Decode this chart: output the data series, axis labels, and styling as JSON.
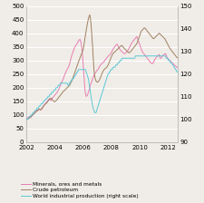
{
  "ylim_left": [
    0,
    500
  ],
  "ylim_right": [
    90,
    150
  ],
  "yticks_left": [
    0,
    50,
    100,
    150,
    200,
    250,
    300,
    350,
    400,
    450,
    500
  ],
  "yticks_right": [
    90,
    100,
    110,
    120,
    130,
    140,
    150
  ],
  "xlim": [
    2002.0,
    2012.67
  ],
  "xticks": [
    2002,
    2004,
    2006,
    2008,
    2010,
    2012
  ],
  "color_minerals": "#e87db0",
  "color_petroleum": "#a08060",
  "color_industrial": "#5bc8d8",
  "legend_labels": [
    "Minerals, ores and metals",
    "Crude petroleum",
    "World industrial production (right scale)"
  ],
  "background_color": "#f0ede8",
  "grid_color": "#ffffff",
  "minerals": [
    88,
    90,
    88,
    92,
    95,
    93,
    90,
    95,
    98,
    100,
    105,
    108,
    110,
    112,
    115,
    118,
    115,
    118,
    122,
    120,
    118,
    120,
    122,
    125,
    130,
    135,
    140,
    142,
    145,
    148,
    150,
    155,
    158,
    160,
    155,
    152,
    158,
    162,
    165,
    168,
    172,
    175,
    178,
    182,
    185,
    190,
    195,
    200,
    208,
    215,
    220,
    225,
    230,
    238,
    245,
    252,
    258,
    262,
    268,
    272,
    278,
    285,
    295,
    305,
    315,
    322,
    330,
    338,
    345,
    350,
    355,
    358,
    362,
    368,
    372,
    375,
    378,
    372,
    360,
    340,
    310,
    272,
    235,
    200,
    178,
    168,
    170,
    175,
    182,
    190,
    200,
    210,
    218,
    225,
    232,
    238,
    245,
    250,
    255,
    258,
    262,
    265,
    268,
    272,
    278,
    282,
    285,
    288,
    290,
    292,
    295,
    298,
    302,
    305,
    308,
    312,
    315,
    318,
    320,
    322,
    325,
    330,
    335,
    340,
    345,
    348,
    352,
    355,
    358,
    360,
    355,
    350,
    345,
    342,
    338,
    335,
    332,
    330,
    328,
    325,
    325,
    328,
    330,
    332,
    335,
    340,
    345,
    350,
    355,
    360,
    365,
    368,
    372,
    375,
    378,
    382,
    385,
    388,
    382,
    375,
    368,
    360,
    352,
    345,
    338,
    332,
    328,
    325,
    322,
    318,
    315,
    312,
    308,
    305,
    302,
    298,
    295,
    292,
    290,
    288,
    290,
    295,
    300,
    305,
    308,
    312,
    315,
    318,
    320,
    322,
    310,
    308,
    310,
    315,
    318,
    320,
    322,
    325,
    325,
    318,
    312,
    308,
    305,
    302,
    300,
    298,
    295,
    292,
    290,
    288,
    285,
    282,
    280,
    278,
    276,
    274
  ],
  "petroleum": [
    82,
    84,
    85,
    87,
    88,
    90,
    92,
    95,
    98,
    100,
    102,
    105,
    108,
    110,
    112,
    115,
    118,
    120,
    122,
    120,
    118,
    122,
    125,
    128,
    132,
    135,
    138,
    140,
    142,
    145,
    148,
    152,
    155,
    158,
    160,
    162,
    158,
    155,
    152,
    150,
    148,
    150,
    152,
    155,
    158,
    162,
    165,
    168,
    172,
    175,
    178,
    182,
    185,
    188,
    190,
    192,
    195,
    198,
    200,
    202,
    205,
    208,
    212,
    218,
    222,
    228,
    235,
    242,
    250,
    258,
    265,
    272,
    280,
    288,
    295,
    302,
    308,
    315,
    322,
    328,
    335,
    345,
    360,
    378,
    395,
    410,
    425,
    440,
    452,
    462,
    468,
    455,
    430,
    395,
    355,
    310,
    268,
    245,
    232,
    225,
    222,
    220,
    222,
    225,
    230,
    235,
    242,
    248,
    255,
    260,
    265,
    268,
    270,
    272,
    275,
    278,
    282,
    288,
    295,
    302,
    308,
    315,
    320,
    325,
    328,
    330,
    332,
    335,
    338,
    340,
    342,
    345,
    348,
    350,
    352,
    355,
    355,
    352,
    348,
    345,
    342,
    340,
    338,
    335,
    332,
    330,
    328,
    330,
    332,
    335,
    338,
    342,
    345,
    348,
    352,
    355,
    358,
    362,
    368,
    375,
    382,
    390,
    398,
    405,
    410,
    412,
    415,
    418,
    420,
    418,
    415,
    412,
    408,
    405,
    402,
    398,
    395,
    392,
    388,
    385,
    382,
    380,
    382,
    385,
    388,
    390,
    392,
    395,
    398,
    400,
    398,
    395,
    392,
    390,
    388,
    385,
    382,
    380,
    375,
    370,
    365,
    360,
    355,
    350,
    345,
    342,
    338,
    335,
    332,
    328,
    325,
    322,
    318,
    315,
    312,
    310
  ],
  "industrial": [
    100,
    100,
    100,
    101,
    101,
    101,
    102,
    102,
    102,
    103,
    103,
    103,
    104,
    104,
    104,
    105,
    105,
    105,
    106,
    106,
    106,
    107,
    107,
    107,
    108,
    108,
    108,
    109,
    109,
    109,
    110,
    110,
    110,
    111,
    111,
    111,
    112,
    112,
    112,
    113,
    113,
    113,
    114,
    114,
    114,
    115,
    115,
    115,
    116,
    116,
    116,
    116,
    116,
    116,
    116,
    116,
    116,
    116,
    116,
    115,
    115,
    116,
    116,
    117,
    117,
    118,
    118,
    118,
    119,
    119,
    120,
    120,
    121,
    121,
    122,
    122,
    122,
    122,
    122,
    122,
    122,
    122,
    122,
    122,
    122,
    121,
    120,
    119,
    118,
    116,
    114,
    112,
    110,
    108,
    106,
    105,
    104,
    103,
    103,
    103,
    104,
    105,
    106,
    107,
    108,
    109,
    110,
    111,
    112,
    113,
    114,
    115,
    116,
    117,
    118,
    119,
    120,
    120,
    121,
    121,
    122,
    122,
    122,
    123,
    123,
    123,
    123,
    124,
    124,
    124,
    125,
    125,
    125,
    126,
    126,
    126,
    127,
    127,
    127,
    127,
    127,
    127,
    127,
    127,
    127,
    127,
    127,
    127,
    127,
    127,
    127,
    127,
    127,
    127,
    127,
    128,
    128,
    128,
    128,
    128,
    128,
    128,
    128,
    128,
    128,
    128,
    128,
    128,
    128,
    128,
    128,
    128,
    128,
    128,
    128,
    128,
    128,
    128,
    128,
    128,
    128,
    128,
    128,
    128,
    128,
    128,
    128,
    128,
    128,
    128,
    128,
    128,
    128,
    128,
    128,
    128,
    128,
    128,
    128,
    127,
    127,
    127,
    126,
    126,
    126,
    125,
    125,
    125,
    124,
    124,
    123,
    123,
    122,
    122,
    121,
    121
  ]
}
